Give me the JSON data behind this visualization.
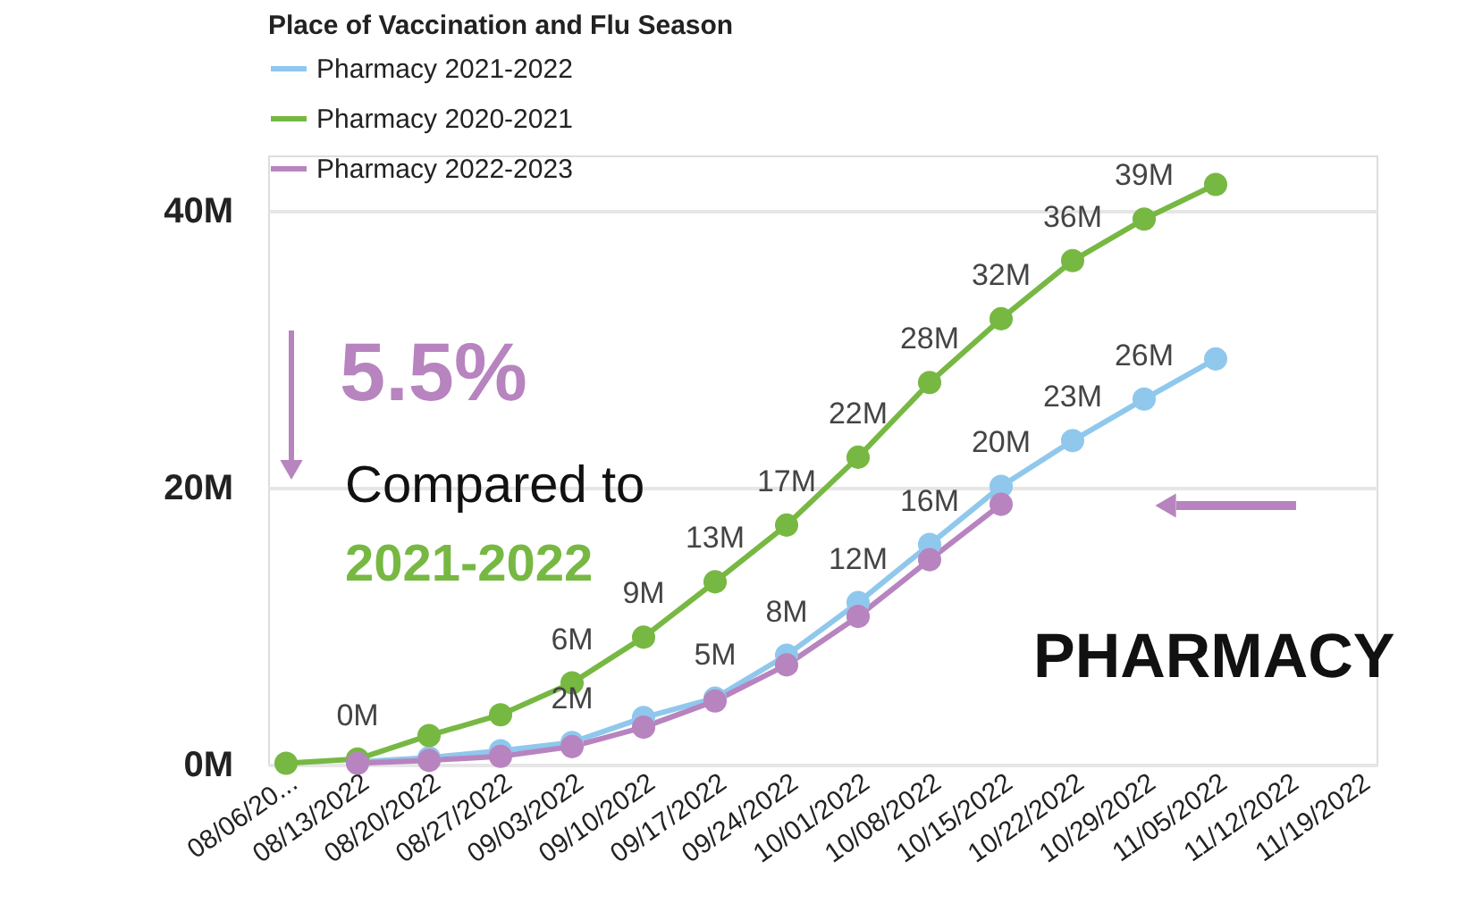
{
  "chart_data": {
    "type": "line",
    "legend_title": "Place of Vaccination and Flu Season",
    "categories": [
      "08/06/20...",
      "08/13/2022",
      "08/20/2022",
      "08/27/2022",
      "09/03/2022",
      "09/10/2022",
      "09/17/2022",
      "09/24/2022",
      "10/01/2022",
      "10/08/2022",
      "10/15/2022",
      "10/22/2022",
      "10/29/2022",
      "11/05/2022",
      "11/12/2022",
      "11/19/2022"
    ],
    "series": [
      {
        "name": "Pharmacy 2021-2022",
        "color": "#8fc8ec",
        "values": [
          null,
          0.2,
          0.5,
          1.0,
          1.6,
          3.4,
          4.8,
          7.9,
          11.7,
          15.9,
          20.1,
          23.4,
          26.4,
          29.3,
          null,
          null
        ],
        "value_labels": [
          null,
          null,
          null,
          null,
          "2M",
          null,
          "5M",
          "8M",
          "12M",
          "16M",
          "20M",
          "23M",
          "26M",
          null,
          null,
          null
        ]
      },
      {
        "name": "Pharmacy 2020-2021",
        "color": "#77b843",
        "values": [
          0.1,
          0.4,
          2.1,
          3.6,
          5.9,
          9.2,
          13.2,
          17.3,
          22.2,
          27.6,
          32.2,
          36.4,
          39.4,
          41.9,
          null,
          null
        ],
        "value_labels": [
          null,
          "0M",
          null,
          null,
          "6M",
          "9M",
          "13M",
          "17M",
          "22M",
          "28M",
          "32M",
          "36M",
          "39M",
          null,
          null,
          null
        ]
      },
      {
        "name": "Pharmacy 2022-2023",
        "color": "#b784bf",
        "values": [
          null,
          0.1,
          0.3,
          0.6,
          1.3,
          2.7,
          4.6,
          7.2,
          10.7,
          14.8,
          18.8,
          null,
          null,
          null,
          null,
          null
        ]
      }
    ],
    "ylim": [
      0,
      44
    ],
    "yticks": [
      {
        "value": 0,
        "label": "0M"
      },
      {
        "value": 20,
        "label": "20M"
      },
      {
        "value": 40,
        "label": "40M"
      }
    ],
    "grid": "y",
    "legend": "top left",
    "marker": "circle",
    "line_style": "solid",
    "annotations": [
      "5.5%",
      "Compared to",
      "2021-2022",
      "PHARMACY"
    ]
  }
}
